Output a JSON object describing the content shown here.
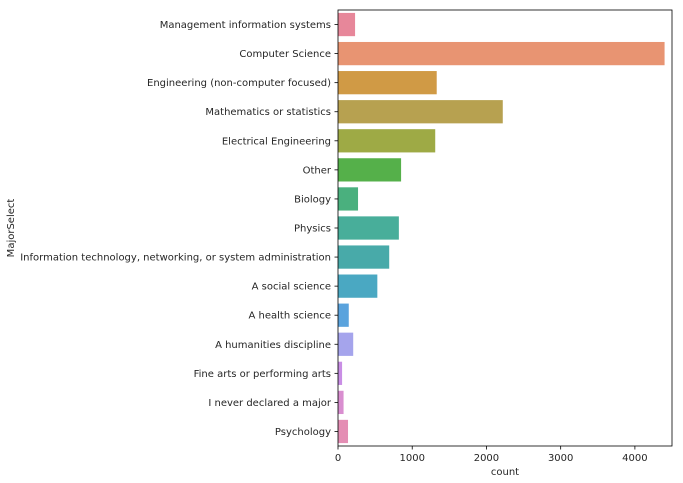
{
  "chart_data": {
    "type": "bar",
    "orientation": "horizontal",
    "title": "",
    "xlabel": "count",
    "ylabel": "MajorSelect",
    "xlim": [
      0,
      4500
    ],
    "x_ticks": [
      0,
      1000,
      2000,
      3000,
      4000
    ],
    "grid": false,
    "legend": "none",
    "categories": [
      "Management information systems",
      "Computer Science",
      "Engineering (non-computer focused)",
      "Mathematics or statistics",
      "Electrical Engineering",
      "Other",
      "Biology",
      "Physics",
      "Information technology, networking, or system administration",
      "A social science",
      "A health science",
      "A humanities discipline",
      "Fine arts or performing arts",
      "I never declared a major",
      "Psychology"
    ],
    "values": [
      230,
      4400,
      1330,
      2220,
      1310,
      850,
      270,
      820,
      690,
      530,
      145,
      205,
      55,
      75,
      135
    ],
    "colors": [
      "#e7879a",
      "#e89472",
      "#d09a45",
      "#b7a150",
      "#9eaa45",
      "#55b04a",
      "#4ab07e",
      "#48ae9a",
      "#48aaa9",
      "#4aa8c2",
      "#5aa3dd",
      "#a5a4ec",
      "#c98ee5",
      "#d98ed0",
      "#e48eb4"
    ]
  }
}
